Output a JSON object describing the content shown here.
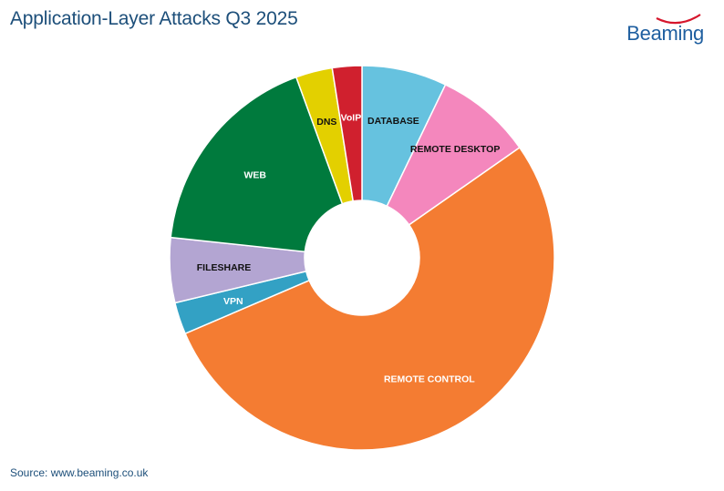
{
  "title": "Application-Layer Attacks Q3 2025",
  "source": "Source: www.beaming.co.uk",
  "logo_text": "Beaming",
  "colors": {
    "title": "#1d4f7a",
    "logo": "#1f5fa0",
    "logo_accent": "#d6162c"
  },
  "chart_data": {
    "type": "pie",
    "title": "Application-Layer Attacks Q3 2025",
    "hole": true,
    "slices": [
      {
        "label": "DATABASE",
        "value": 7.2,
        "color": "#66c2df",
        "label_color": "#111111"
      },
      {
        "label": "REMOTE DESKTOP",
        "value": 8.2,
        "color": "#f487bd",
        "label_color": "#111111"
      },
      {
        "label": "REMOTE CONTROL",
        "value": 53.7,
        "color": "#f47c32",
        "label_color": "#ffffff"
      },
      {
        "label": "VPN",
        "value": 2.7,
        "color": "#33a1c4",
        "label_color": "#ffffff"
      },
      {
        "label": "FILESHARE",
        "value": 5.5,
        "color": "#b3a5d2",
        "label_color": "#111111"
      },
      {
        "label": "WEB",
        "value": 17.9,
        "color": "#007a3d",
        "label_color": "#ffffff"
      },
      {
        "label": "DNS",
        "value": 3.1,
        "color": "#e3d000",
        "label_color": "#111111"
      },
      {
        "label": "VoIP",
        "value": 2.5,
        "color": "#d0202e",
        "label_color": "#ffffff"
      }
    ]
  }
}
